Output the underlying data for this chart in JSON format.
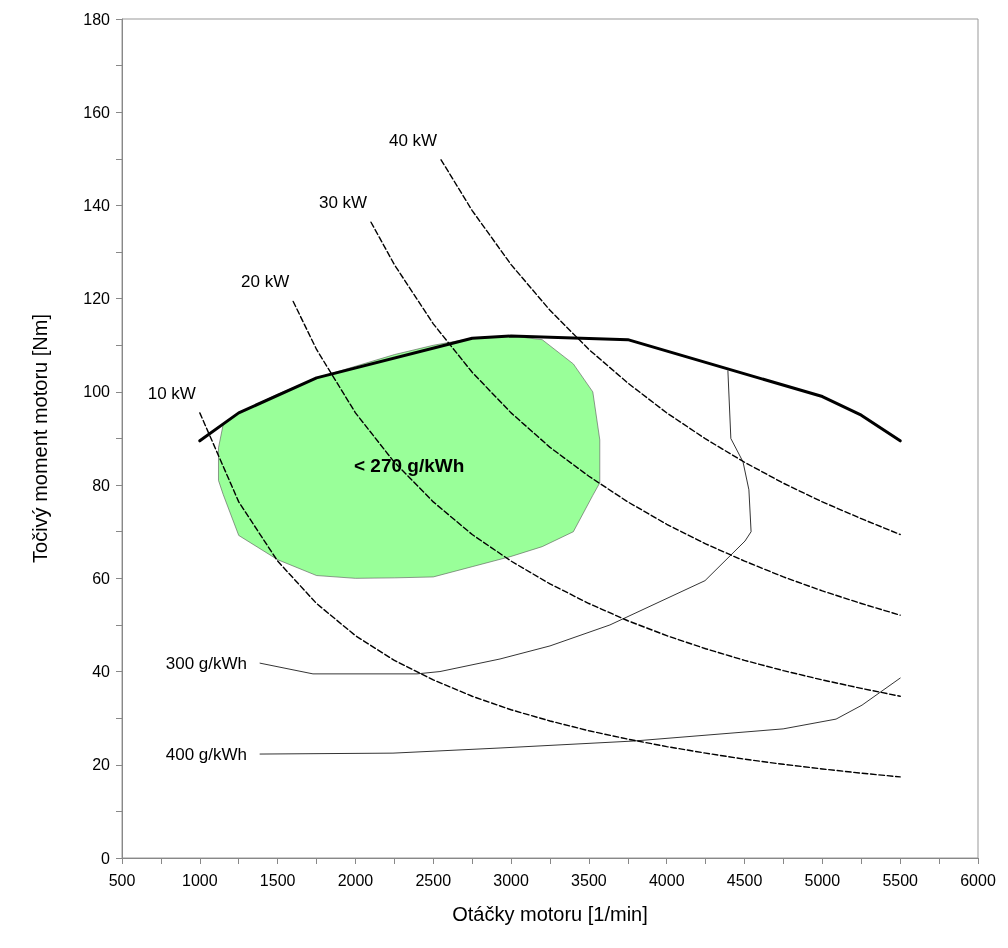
{
  "chart_data": {
    "type": "line",
    "xlabel": "Otáčky motoru [1/min]",
    "ylabel": "Točivý moment motoru [Nm]",
    "xlim": [
      500,
      6000
    ],
    "xticks": [
      500,
      1000,
      1500,
      2000,
      2500,
      3000,
      3500,
      4000,
      4500,
      5000,
      5500,
      6000
    ],
    "ylim": [
      0,
      180
    ],
    "yticks": [
      0,
      20,
      40,
      60,
      80,
      100,
      120,
      140,
      160,
      180
    ],
    "grid": false,
    "marker": "none",
    "series": [
      {
        "type": "area",
        "name": "< 270 g/kWh",
        "color": "#99ff99",
        "x": [
          1120,
          1150,
          1250,
          1500,
          1750,
          2000,
          2250,
          2500,
          2750,
          3000,
          3200,
          3400,
          3525,
          3570,
          3570,
          3525,
          3400,
          3200,
          3000,
          2750,
          2500,
          2250,
          2000,
          1750,
          1500,
          1250,
          1150,
          1120
        ],
        "values": [
          88,
          93,
          95.5,
          99.5,
          103,
          105.5,
          108,
          110,
          111.5,
          112,
          111.2,
          106,
          100,
          89.7,
          80.5,
          77.8,
          70,
          66.8,
          64.7,
          62.5,
          60.3,
          60.1,
          60,
          60.6,
          64,
          69.2,
          78,
          81
        ]
      },
      {
        "color": "#000000",
        "line_style": "solid",
        "x": [
          1000,
          1250,
          1750,
          2750,
          3000,
          3750,
          5000,
          5250,
          5500
        ],
        "values": [
          89.5,
          95.5,
          103,
          111.5,
          112,
          111.2,
          99,
          95,
          89.5
        ]
      },
      {
        "name": "10 kW",
        "color": "#000000",
        "line_style": "dashed",
        "x": [
          1000,
          1250,
          1500,
          1750,
          2000,
          2250,
          2500,
          2750,
          3000,
          3250,
          3500,
          3750,
          4000,
          4250,
          4500,
          4750,
          5000,
          5250,
          5500
        ],
        "values": [
          95.5,
          76.4,
          63.7,
          54.6,
          47.7,
          42.4,
          38.2,
          34.7,
          31.8,
          29.4,
          27.3,
          25.5,
          23.9,
          22.5,
          21.2,
          20.1,
          19.1,
          18.2,
          17.4
        ]
      },
      {
        "name": "20 kW",
        "color": "#000000",
        "line_style": "dashed",
        "x": [
          1600,
          1750,
          2000,
          2250,
          2500,
          2750,
          3000,
          3250,
          3500,
          3750,
          4000,
          4250,
          4500,
          4750,
          5000,
          5250,
          5500
        ],
        "values": [
          119.4,
          109.1,
          95.5,
          84.9,
          76.4,
          69.4,
          63.7,
          58.8,
          54.6,
          50.9,
          47.7,
          44.9,
          42.4,
          40.2,
          38.2,
          36.4,
          34.7
        ]
      },
      {
        "name": "30 kW",
        "color": "#000000",
        "line_style": "dashed",
        "x": [
          2100,
          2250,
          2500,
          2750,
          3000,
          3250,
          3500,
          3750,
          4000,
          4250,
          4500,
          4750,
          5000,
          5250,
          5500
        ],
        "values": [
          136.4,
          127.3,
          114.6,
          104.2,
          95.5,
          88.1,
          81.9,
          76.4,
          71.6,
          67.4,
          63.7,
          60.3,
          57.3,
          54.6,
          52.1
        ]
      },
      {
        "name": "40 kW",
        "color": "#000000",
        "line_style": "dashed",
        "x": [
          2550,
          2750,
          3000,
          3250,
          3500,
          3750,
          4000,
          4250,
          4500,
          4750,
          5000,
          5250,
          5500
        ],
        "values": [
          149.8,
          138.9,
          127.3,
          117.5,
          109.1,
          101.9,
          95.5,
          89.9,
          84.9,
          80.4,
          76.4,
          72.8,
          69.4
        ]
      },
      {
        "name": "300 g/kWh",
        "color": "#000000",
        "line_style": "solid",
        "x": [
          1387,
          1727,
          2395,
          2543,
          2929,
          3250,
          3635,
          4246,
          4503,
          4542,
          4528,
          4490,
          4412,
          4393
        ],
        "values": [
          41.8,
          39.5,
          39.5,
          40,
          42.7,
          45.5,
          50,
          59.5,
          68,
          70,
          79,
          85,
          90,
          104.5
        ]
      },
      {
        "name": "400 g/kWh",
        "color": "#000000",
        "line_style": "solid",
        "x": [
          1387,
          2241,
          2929,
          3790,
          4748,
          5088,
          5255,
          5500
        ],
        "values": [
          22.3,
          22.5,
          23.6,
          25.1,
          27.7,
          29.8,
          32.8,
          38.6
        ]
      }
    ]
  }
}
